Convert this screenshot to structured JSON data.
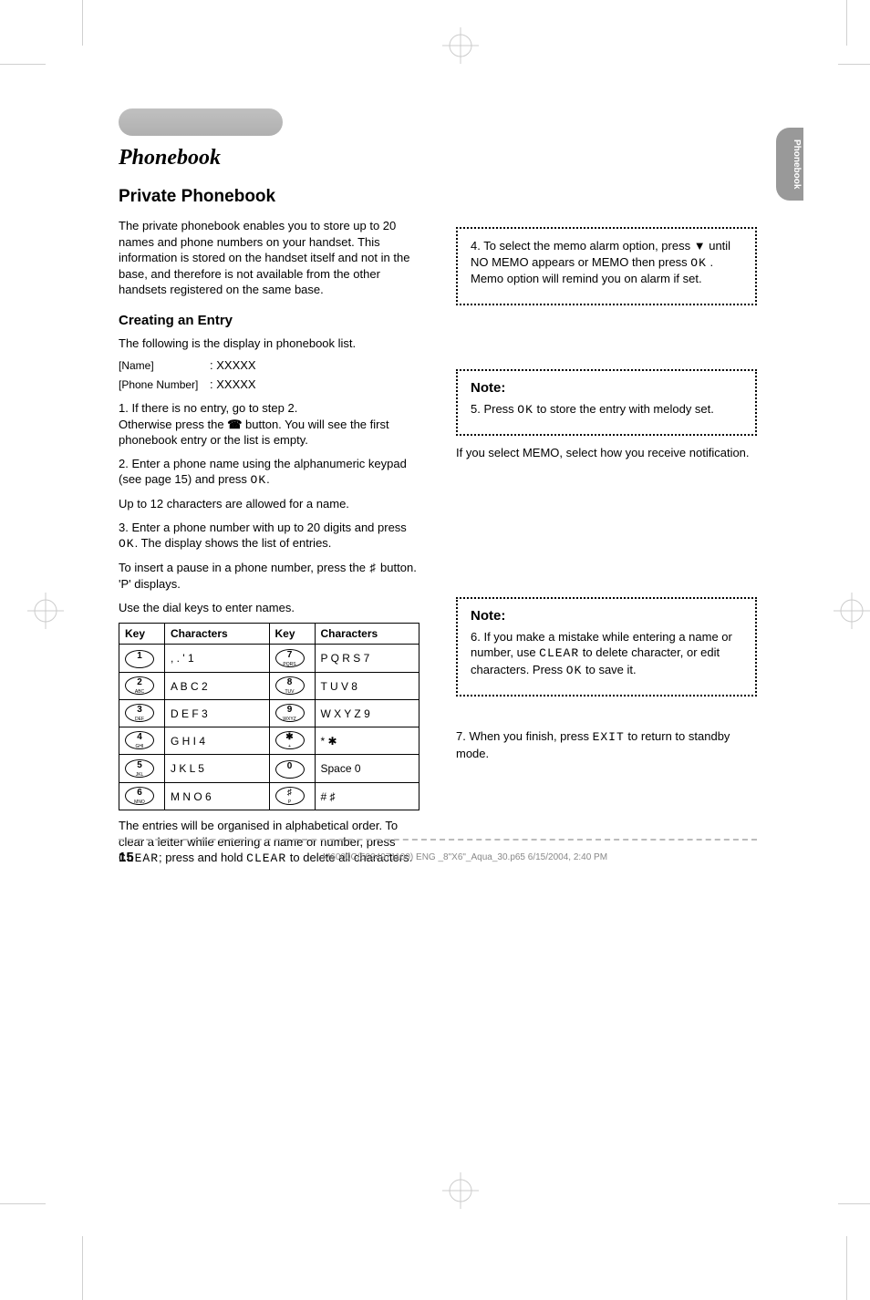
{
  "header": {
    "thumb_tab": "Phonebook"
  },
  "section": {
    "title": "Phonebook",
    "subtitle": "Private Phonebook",
    "intro": "The private phonebook enables you to store up to 20 names and phone numbers on your handset. This information is stored on the handset itself and not in the base, and therefore is not available from the other handsets registered on the same base.",
    "create_heading": "Creating an Entry",
    "entry_format_intro": "The following is the display in phonebook list.",
    "labels": {
      "name": "[Name]",
      "phone": "[Phone Number]"
    },
    "steps": {
      "s1_a": "1. If there is no entry, go to step 2.",
      "s1_b": "Otherwise press the ",
      "s1_c": " button. You will see the first phonebook entry or the list is empty.",
      "s2_a": "2. Enter a phone name using the alphanumeric keypad (see page 15) and press ",
      "s2_b": ".",
      "step2_limit": "Up to 12 characters are allowed for a name.",
      "s3_a": "3. Enter a phone number with up to 20 digits and press ",
      "s3_b": ". The display shows the list of entries.",
      "pause_a": "To insert a pause in a phone number, press the  ",
      "pause_b": "  button. 'P' displays.",
      "keypad_intro": "Use the dial keys to enter names."
    },
    "keypad": {
      "columns": [
        "Key",
        "Characters",
        "Key",
        "Characters"
      ],
      "rows": [
        {
          "k1": "1",
          "k1sub": "",
          "c1": ", . ' 1",
          "k2": "7",
          "k2sub": "PQRS",
          "c2": "P Q R S 7"
        },
        {
          "k1": "2",
          "k1sub": "ABC",
          "c1": "A B C 2",
          "k2": "8",
          "k2sub": "TUV",
          "c2": "T U V 8"
        },
        {
          "k1": "3",
          "k1sub": "DEF",
          "c1": "D E F 3",
          "k2": "9",
          "k2sub": "WXYZ",
          "c2": "W X Y Z 9"
        },
        {
          "k1": "4",
          "k1sub": "GHI",
          "c1": "G H I 4",
          "k2": "✱",
          "k2sub": "+",
          "c2": "* ✱"
        },
        {
          "k1": "5",
          "k1sub": "JKL",
          "c1": "J K L 5",
          "k2": "0",
          "k2sub": "",
          "c2": "Space 0"
        },
        {
          "k1": "6",
          "k1sub": "MNO",
          "c1": "M N O 6",
          "k2": "♯",
          "k2sub": "P",
          "c2": "# ♯"
        }
      ]
    },
    "clear_entry": "The entries will be organised in alphabetical order. To clear a letter while entering a name or number, press ",
    "clear_all": "press and hold ",
    "clear_all_suffix": " to delete all characters.",
    "right_col": {
      "s4": "4. To select the memo alarm option, press ",
      "s4_arrow": "▼",
      "s4_b": " until NO MEMO appears or MEMO then press ",
      "s4_c": ". Memo option will remind you on alarm if set.",
      "note5_title": "Note:",
      "note5_body_a": "5. Press ",
      "note5_body_b": " to store the entry with melody set.",
      "s6_intro": "If you select MEMO, select how you receive notification.",
      "note6_body_a": "6. If you make a mistake while entering a name or number, use ",
      "note6_body_b": " to delete character, or edit characters. Press ",
      "note6_body_c": " to save it.",
      "s7_a": "7. When you finish, press ",
      "s7_b": " to return to standby mode."
    },
    "lcd_tokens": {
      "ok": "OK",
      "clear": "CLEAR",
      "exit": "EXIT",
      "hash": "♯"
    }
  },
  "footer": {
    "page": "15",
    "text": "M6000C(5024971100) ENG _8\"X6\"_Aqua_30.p65   6/15/2004, 2:40 PM"
  },
  "colors": {
    "gray_tab": "#b0b0b0",
    "thumb_tab": "#999999",
    "text": "#000000"
  }
}
